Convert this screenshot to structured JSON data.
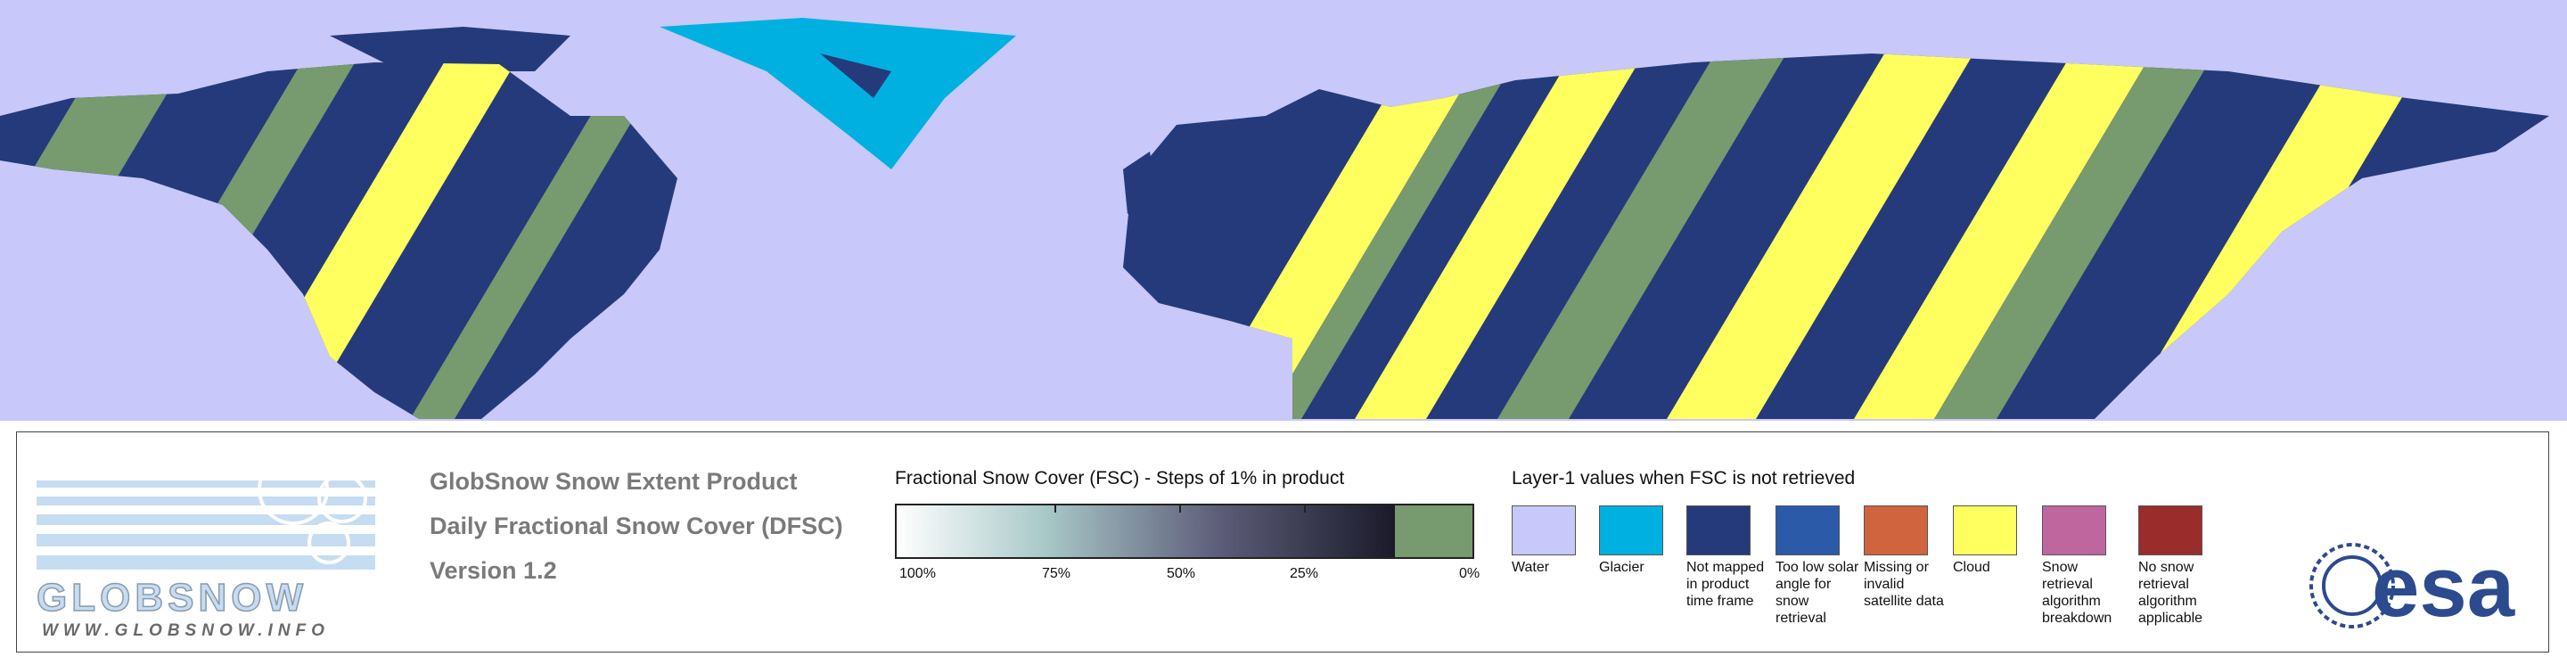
{
  "logo": {
    "name": "GLOBSNOW",
    "url": "WWW.GLOBSNOW.INFO"
  },
  "product": {
    "lines": [
      "GlobSnow Snow Extent Product",
      "Daily Fractional Snow Cover (DFSC)",
      "Version 1.2"
    ]
  },
  "fsc_scale": {
    "title": "Fractional Snow Cover (FSC) - Steps of 1% in product",
    "labels": [
      "100%",
      "75%",
      "50%",
      "25%",
      "0%"
    ]
  },
  "layer1": {
    "title": "Layer-1 values when FSC is not retrieved",
    "items": [
      {
        "label": "Water",
        "color": "#c8c8fa"
      },
      {
        "label": "Glacier",
        "color": "#00b0e0"
      },
      {
        "label": "Not mapped in product time frame",
        "color": "#253a7a"
      },
      {
        "label": "Too low solar angle for snow retrieval",
        "color": "#2b5aa8"
      },
      {
        "label": "Missing or invalid satellite data",
        "color": "#d0643e"
      },
      {
        "label": "Cloud",
        "color": "#ffff60"
      },
      {
        "label": "Snow retrieval algorithm breakdown",
        "color": "#c0669e"
      },
      {
        "label": "No snow retrieval algorithm applicable",
        "color": "#9a2c2c"
      }
    ]
  },
  "esa_logo": "esa"
}
